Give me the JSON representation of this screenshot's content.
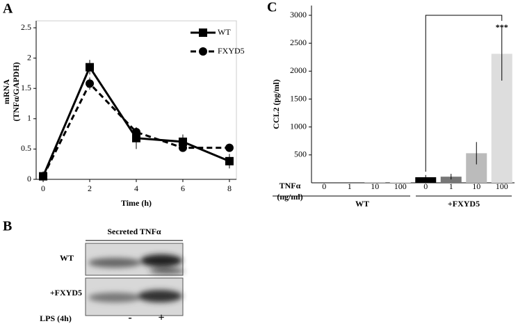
{
  "panels": {
    "a": "A",
    "b": "B",
    "c": "C"
  },
  "chart_data": [
    {
      "type": "line",
      "xlabel": "Time (h)",
      "ylabel": [
        "mRNA",
        "(TNFα/GAPDH)"
      ],
      "x": [
        0,
        2,
        4,
        6,
        8
      ],
      "series": [
        {
          "name": "WT",
          "color": "#000000",
          "line_style": "solid",
          "marker": "square",
          "values": [
            0.05,
            1.85,
            0.68,
            0.62,
            0.3
          ],
          "errors": [
            0.08,
            0.12,
            0.18,
            0.12,
            0.12
          ]
        },
        {
          "name": "FXYD5",
          "color": "#000000",
          "line_style": "dashed",
          "marker": "circle",
          "values": [
            0.05,
            1.58,
            0.78,
            0.52,
            0.52
          ],
          "errors": [
            0.05,
            0.1,
            0.05,
            0.05,
            0.03
          ]
        }
      ],
      "xlim": [
        -0.3,
        8.3
      ],
      "xticks": [
        0,
        2,
        4,
        6,
        8
      ],
      "ylim": [
        0,
        2.5
      ],
      "yticks": [
        0,
        0.5,
        1,
        1.5,
        2,
        2.5
      ],
      "legend": "upper right"
    },
    {
      "type": "bar",
      "ylabel": "CCL2 (pg/ml)",
      "category_label": [
        "TNFα",
        "(ng/ml)"
      ],
      "categories": [
        "0",
        "1",
        "10",
        "100",
        "0",
        "1",
        "10",
        "100"
      ],
      "groups": [
        "WT",
        "+FXYD5"
      ],
      "values": [
        0,
        0,
        5,
        8,
        100,
        110,
        530,
        2310
      ],
      "errors": [
        null,
        null,
        null,
        null,
        40,
        50,
        200,
        480
      ],
      "colors": [
        "#000000",
        "#777777",
        "#bbbbbb",
        "#dddddd",
        "#000000",
        "#777777",
        "#bbbbbb",
        "#dddddd"
      ],
      "annotation": "***",
      "ylim": [
        0,
        3000
      ],
      "yticks": [
        500,
        1000,
        1500,
        2000,
        2500,
        3000
      ]
    }
  ],
  "blot": {
    "title": "Secreted TNFα",
    "rows": [
      "WT",
      "+FXYD5"
    ],
    "treatment": "LPS (4h)",
    "lanes": [
      "-",
      "+"
    ]
  }
}
